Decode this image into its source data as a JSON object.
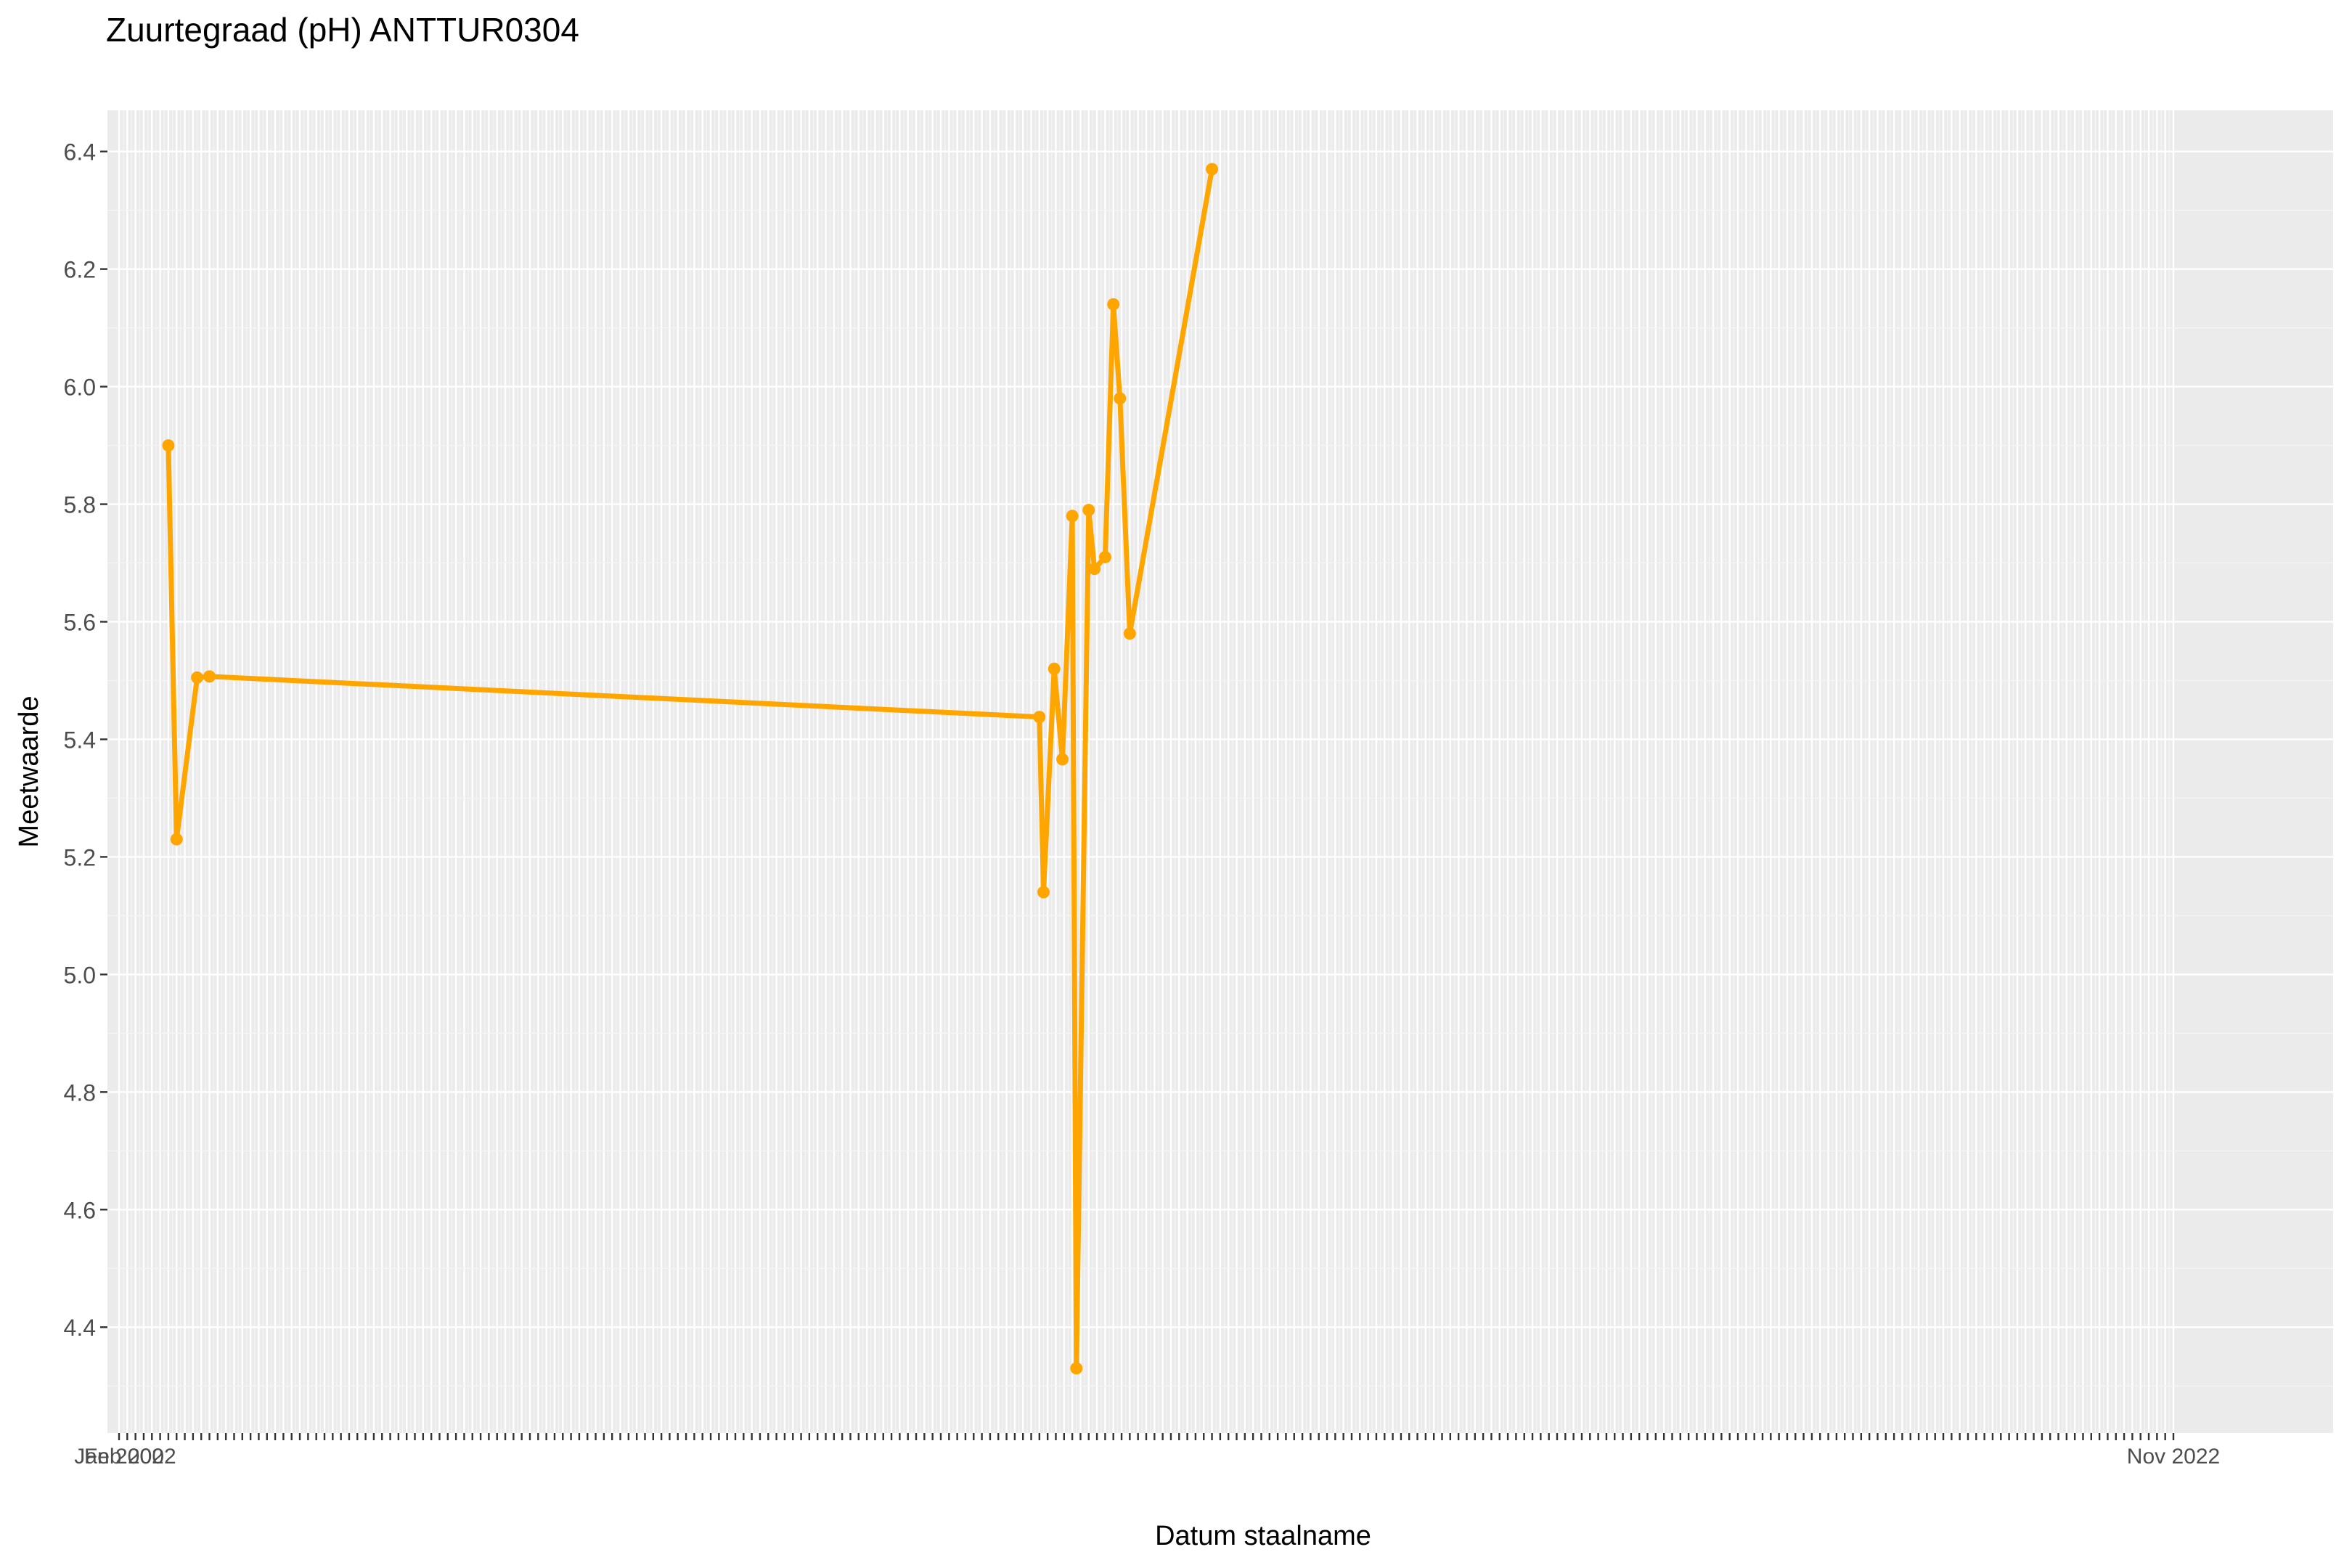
{
  "chart_data": {
    "type": "line",
    "title": "Zuurtegraad (pH) ANTTUR0304",
    "xlabel": "Datum staalname",
    "ylabel": "Meetwaarde",
    "ylim": [
      4.22,
      6.47
    ],
    "yticks": [
      "4.4",
      "4.6",
      "4.8",
      "5.0",
      "5.2",
      "5.4",
      "5.6",
      "5.8",
      "6.0",
      "6.2",
      "6.4"
    ],
    "grid": true,
    "legend": "none",
    "series": [
      {
        "color": "#FFA500",
        "points": [
          {
            "x": 6,
            "y": 5.9
          },
          {
            "x": 7,
            "y": 5.23
          },
          {
            "x": 9.5,
            "y": 5.505
          },
          {
            "x": 11,
            "y": 5.507
          },
          {
            "x": 112,
            "y": 5.438
          },
          {
            "x": 112.5,
            "y": 5.14
          },
          {
            "x": 113.8,
            "y": 5.52
          },
          {
            "x": 114.8,
            "y": 5.366
          },
          {
            "x": 116,
            "y": 5.78
          },
          {
            "x": 116.5,
            "y": 4.33
          },
          {
            "x": 118,
            "y": 5.79
          },
          {
            "x": 118.7,
            "y": 5.69
          },
          {
            "x": 120,
            "y": 5.71
          },
          {
            "x": 121,
            "y": 6.14
          },
          {
            "x": 121.8,
            "y": 5.98
          },
          {
            "x": 123,
            "y": 5.58
          },
          {
            "x": 133,
            "y": 6.37
          }
        ]
      }
    ],
    "x_ticks": {
      "first": "Jan 2002",
      "second": "Feb 2002",
      "last": "Nov 2022"
    }
  },
  "colors": {
    "panel_background": "#EBEBEB",
    "grid_major": "#FFFFFF",
    "line": "#FFA500"
  }
}
